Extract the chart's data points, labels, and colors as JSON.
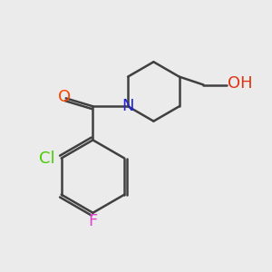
{
  "bg_color": "#ebebeb",
  "bond_color": "#404040",
  "bond_width": 1.8,
  "atom_colors": {
    "O_carbonyl": "#ff4400",
    "N": "#2222dd",
    "Cl": "#44cc00",
    "F": "#dd44cc",
    "O_hydroxyl": "#dd3311",
    "H_hydroxyl": "#44aaaa"
  },
  "font_size": 13,
  "font_size_small": 11
}
